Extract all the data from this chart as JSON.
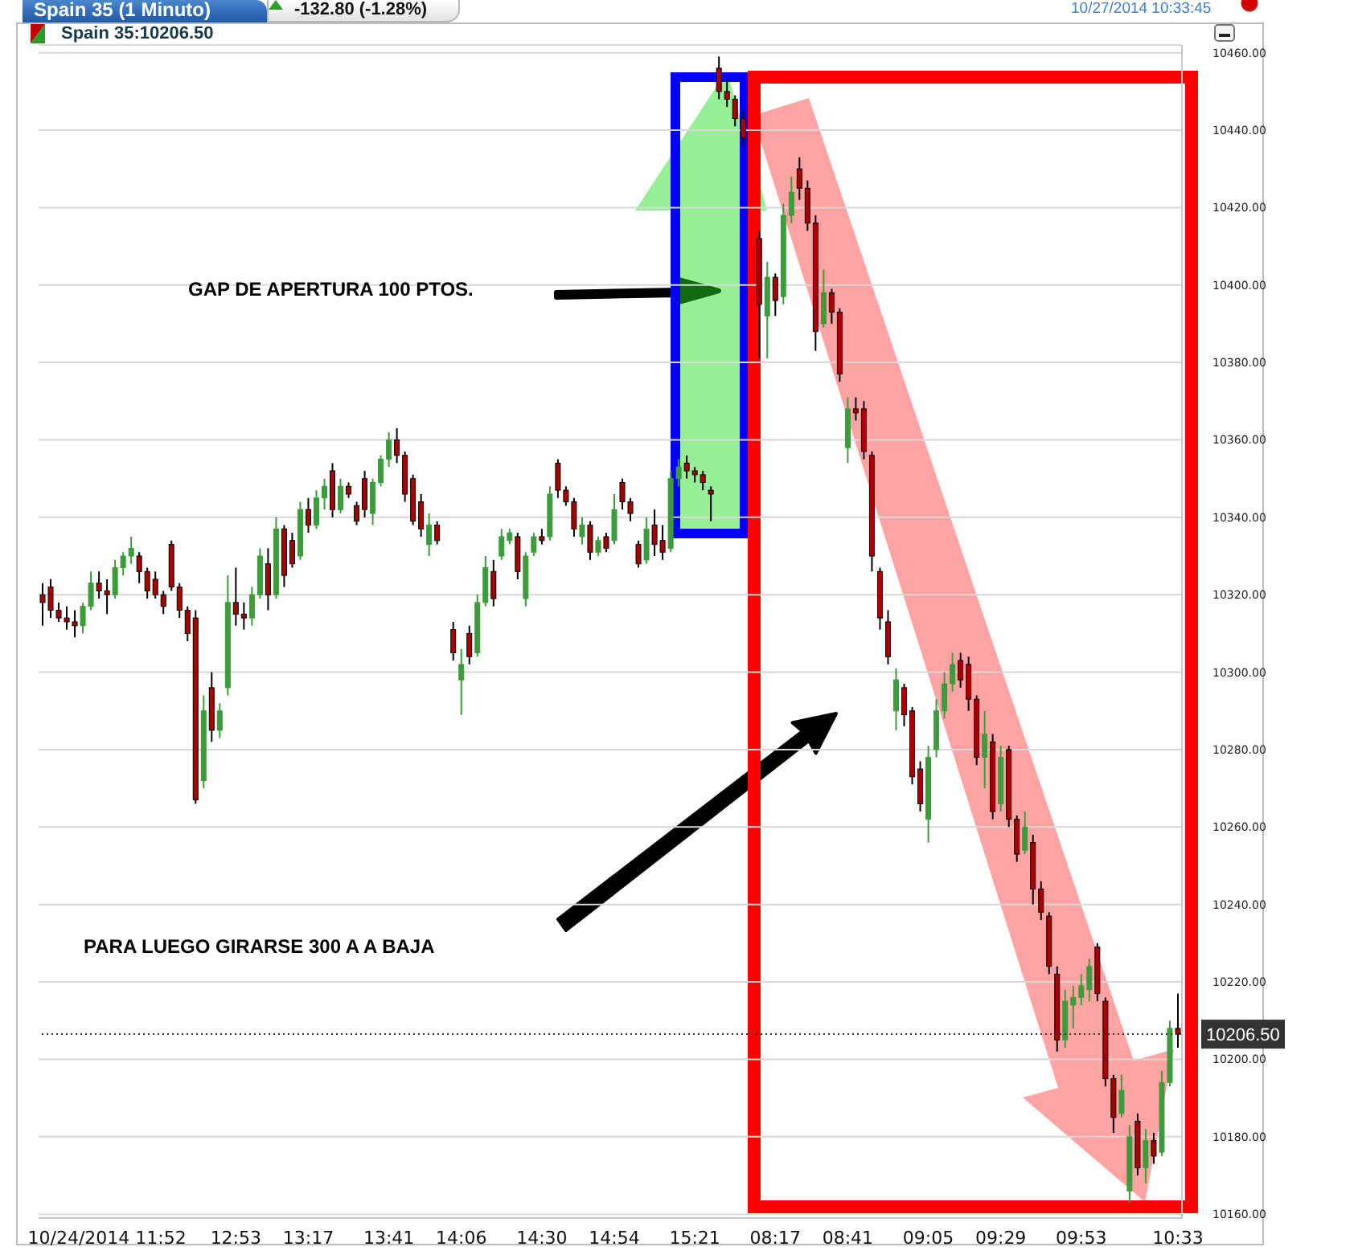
{
  "chart_data": {
    "type": "candlestick",
    "title": "Spain 35 (1 Minuto)",
    "subtitle": "Spain 35:10206.50",
    "annotations": [
      "-132.80 (-1.28%)",
      "10/27/2014 10:33:45",
      "GAP DE APERTURA 100 PTOS.",
      "PARA LUEGO GIRARSE 300 A A BAJA"
    ],
    "categories": [
      null,
      null,
      null,
      null,
      null,
      null,
      null,
      null,
      "10/24/2014 11:52",
      null,
      null,
      null,
      null,
      null,
      null,
      null,
      null,
      null,
      null,
      null,
      null,
      null,
      null,
      null,
      "12:53",
      null,
      null,
      null,
      null,
      null,
      null,
      null,
      null,
      "13:17",
      null,
      null,
      null,
      null,
      null,
      null,
      null,
      null,
      null,
      "13:41",
      null,
      null,
      null,
      null,
      null,
      null,
      null,
      null,
      "14:06",
      null,
      null,
      null,
      null,
      null,
      null,
      null,
      null,
      null,
      "14:30",
      null,
      null,
      null,
      null,
      null,
      null,
      null,
      null,
      "14:54",
      null,
      null,
      null,
      null,
      null,
      null,
      null,
      null,
      null,
      "15:21",
      null,
      null,
      null,
      null,
      null,
      null,
      null,
      null,
      null,
      "08:17",
      null,
      null,
      null,
      null,
      null,
      null,
      null,
      null,
      "08:41",
      null,
      null,
      null,
      null,
      null,
      null,
      null,
      null,
      null,
      "09:05",
      null,
      null,
      null,
      null,
      null,
      null,
      null,
      null,
      "09:29",
      null,
      null,
      null,
      null,
      null,
      null,
      null,
      null,
      null,
      "09:53",
      null,
      null,
      null,
      null,
      null,
      null,
      null,
      null,
      null,
      null,
      null,
      "10:33"
    ],
    "ohlc": [
      [
        10320,
        10323,
        10312,
        10318
      ],
      [
        10322,
        10324,
        10314,
        10316
      ],
      [
        10316,
        10318,
        10313,
        10314
      ],
      [
        10314,
        10317,
        10311,
        10313
      ],
      [
        10313,
        10316,
        10309,
        10312
      ],
      [
        10312,
        10318,
        10310,
        10317
      ],
      [
        10317,
        10326,
        10316,
        10323
      ],
      [
        10323,
        10326,
        10319,
        10321
      ],
      [
        10321,
        10324,
        10315,
        10320
      ],
      [
        10320,
        10329,
        10319,
        10327
      ],
      [
        10327,
        10331,
        10325,
        10330
      ],
      [
        10330,
        10335,
        10328,
        10332
      ],
      [
        10330,
        10331,
        10323,
        10326
      ],
      [
        10326,
        10327,
        10319,
        10321
      ],
      [
        10324,
        10326,
        10319,
        10320
      ],
      [
        10320,
        10321,
        10315,
        10317
      ],
      [
        10333,
        10334,
        10321,
        10322
      ],
      [
        10322,
        10323,
        10314,
        10316
      ],
      [
        10316,
        10317,
        10308,
        10310
      ],
      [
        10314,
        10316,
        10266,
        10267
      ],
      [
        10272,
        10294,
        10270,
        10290
      ],
      [
        10296,
        10300,
        10282,
        10285
      ],
      [
        10285,
        10292,
        10283,
        10290
      ],
      [
        10296,
        10325,
        10294,
        10318
      ],
      [
        10318,
        10327,
        10312,
        10315
      ],
      [
        10315,
        10318,
        10311,
        10314
      ],
      [
        10314,
        10322,
        10312,
        10320
      ],
      [
        10320,
        10332,
        10319,
        10330
      ],
      [
        10328,
        10332,
        10316,
        10320
      ],
      [
        10320,
        10340,
        10319,
        10337
      ],
      [
        10337,
        10338,
        10322,
        10325
      ],
      [
        10334,
        10336,
        10327,
        10328
      ],
      [
        10330,
        10344,
        10329,
        10342
      ],
      [
        10342,
        10345,
        10336,
        10338
      ],
      [
        10338,
        10347,
        10337,
        10345
      ],
      [
        10345,
        10350,
        10342,
        10348
      ],
      [
        10352,
        10354,
        10340,
        10342
      ],
      [
        10342,
        10350,
        10341,
        10348
      ],
      [
        10348,
        10349,
        10345,
        10346
      ],
      [
        10343,
        10344,
        10338,
        10339
      ],
      [
        10350,
        10352,
        10340,
        10342
      ],
      [
        10341,
        10350,
        10338,
        10349
      ],
      [
        10349,
        10356,
        10348,
        10355
      ],
      [
        10355,
        10362,
        10353,
        10360
      ],
      [
        10360,
        10363,
        10354,
        10356
      ],
      [
        10356,
        10357,
        10344,
        10346
      ],
      [
        10350,
        10351,
        10338,
        10339
      ],
      [
        10344,
        10346,
        10335,
        10337
      ],
      [
        10333,
        10341,
        10330,
        10338
      ],
      [
        10338,
        10339,
        10333,
        10334
      ],
      null,
      [
        10311,
        10313,
        10303,
        10305
      ],
      [
        10298,
        10306,
        10289,
        10302
      ],
      [
        10310,
        10312,
        10302,
        10304
      ],
      [
        10305,
        10320,
        10304,
        10318
      ],
      [
        10318,
        10330,
        10317,
        10327
      ],
      [
        10326,
        10329,
        10317,
        10319
      ],
      [
        10330,
        10337,
        10329,
        10335
      ],
      [
        10334,
        10337,
        10333,
        10336
      ],
      [
        10335,
        10336,
        10324,
        10326
      ],
      [
        10319,
        10331,
        10317,
        10330
      ],
      [
        10331,
        10336,
        10330,
        10335
      ],
      [
        10335,
        10337,
        10333,
        10334
      ],
      [
        10335,
        10348,
        10334,
        10346
      ],
      [
        10354,
        10355,
        10345,
        10347
      ],
      [
        10347,
        10348,
        10343,
        10344
      ],
      [
        10344,
        10345,
        10335,
        10337
      ],
      [
        10335,
        10340,
        10333,
        10338
      ],
      [
        10338,
        10339,
        10329,
        10331
      ],
      [
        10331,
        10335,
        10330,
        10334
      ],
      [
        10335,
        10336,
        10331,
        10332
      ],
      [
        10334,
        10346,
        10333,
        10342
      ],
      [
        10349,
        10350,
        10342,
        10344
      ],
      [
        10344,
        10345,
        10339,
        10341
      ],
      [
        10333,
        10334,
        10327,
        10328
      ],
      [
        10329,
        10340,
        10328,
        10337
      ],
      [
        10338,
        10342,
        10330,
        10333
      ],
      [
        10334,
        10338,
        10329,
        10331
      ],
      [
        10332,
        10352,
        10331,
        10350
      ],
      [
        10350,
        10355,
        10348,
        10353
      ],
      [
        10354,
        10356,
        10350,
        10352
      ],
      [
        10352,
        10353,
        10349,
        10351
      ],
      [
        10351,
        10352,
        10347,
        10349
      ],
      [
        10347,
        10348,
        10339,
        10346
      ],
      [
        10456,
        10459,
        10448,
        10450
      ],
      [
        10450,
        10453,
        10446,
        10448
      ],
      [
        10448,
        10449,
        10441,
        10443
      ],
      [
        10443,
        10445,
        10436,
        10438
      ],
      null,
      [
        10412,
        10414,
        10381,
        10395
      ],
      [
        10392,
        10406,
        10381,
        10402
      ],
      [
        10402,
        10403,
        10392,
        10396
      ],
      [
        10397,
        10421,
        10395,
        10418
      ],
      [
        10418,
        10428,
        10416,
        10424
      ],
      [
        10430,
        10433,
        10422,
        10425
      ],
      [
        10425,
        10427,
        10414,
        10416
      ],
      [
        10416,
        10418,
        10383,
        10388
      ],
      [
        10390,
        10404,
        10389,
        10398
      ],
      [
        10398,
        10399,
        10390,
        10393
      ],
      [
        10393,
        10394,
        10375,
        10377
      ],
      [
        10358,
        10371,
        10354,
        10368
      ],
      [
        10368,
        10371,
        10365,
        10367
      ],
      [
        10368,
        10370,
        10355,
        10357
      ],
      [
        10356,
        10357,
        10326,
        10330
      ],
      [
        10326,
        10327,
        10311,
        10314
      ],
      [
        10313,
        10316,
        10302,
        10304
      ],
      [
        10290,
        10301,
        10285,
        10298
      ],
      [
        10296,
        10297,
        10286,
        10289
      ],
      [
        10290,
        10291,
        10271,
        10273
      ],
      [
        10275,
        10277,
        10264,
        10266
      ],
      [
        10262,
        10281,
        10256,
        10278
      ],
      [
        10280,
        10293,
        10278,
        10290
      ],
      [
        10290,
        10300,
        10288,
        10297
      ],
      [
        10297,
        10305,
        10295,
        10302
      ],
      [
        10303,
        10305,
        10296,
        10298
      ],
      [
        10302,
        10304,
        10290,
        10293
      ],
      [
        10293,
        10294,
        10276,
        10278
      ],
      [
        10278,
        10290,
        10270,
        10284
      ],
      [
        10282,
        10284,
        10262,
        10264
      ],
      [
        10266,
        10281,
        10264,
        10278
      ],
      [
        10280,
        10281,
        10260,
        10262
      ],
      [
        10262,
        10263,
        10251,
        10253
      ],
      [
        10254,
        10264,
        10253,
        10260
      ],
      [
        10256,
        10258,
        10240,
        10244
      ],
      [
        10244,
        10246,
        10236,
        10238
      ],
      [
        10237,
        10238,
        10222,
        10224
      ],
      [
        10222,
        10224,
        10202,
        10205
      ],
      [
        10205,
        10218,
        10203,
        10215
      ],
      [
        10214,
        10219,
        10208,
        10216
      ],
      [
        10216,
        10222,
        10214,
        10219
      ],
      [
        10218,
        10226,
        10215,
        10224
      ],
      [
        10229,
        10230,
        10215,
        10217
      ],
      [
        10215,
        10216,
        10193,
        10195
      ],
      [
        10195,
        10196,
        10181,
        10185
      ],
      [
        10186,
        10196,
        10185,
        10192
      ],
      [
        10166,
        10183,
        10163,
        10180
      ],
      [
        10184,
        10186,
        10170,
        10172
      ],
      [
        10172,
        10182,
        10168,
        10179
      ],
      [
        10179,
        10181,
        10173,
        10175
      ],
      [
        10176,
        10197,
        10175,
        10194
      ],
      [
        10194,
        10210,
        10193,
        10208
      ],
      [
        10208,
        10217,
        10203,
        10206.5
      ]
    ],
    "ylim": [
      10159,
      10462
    ],
    "yticks": [
      {
        "value": 10160,
        "label": "10160.00"
      },
      {
        "value": 10180,
        "label": "10180.00"
      },
      {
        "value": 10200,
        "label": "10200.00"
      },
      {
        "value": 10220,
        "label": "10220.00"
      },
      {
        "value": 10240,
        "label": "10240.00"
      },
      {
        "value": 10260,
        "label": "10260.00"
      },
      {
        "value": 10280,
        "label": "10280.00"
      },
      {
        "value": 10300,
        "label": "10300.00"
      },
      {
        "value": 10320,
        "label": "10320.00"
      },
      {
        "value": 10340,
        "label": "10340.00"
      },
      {
        "value": 10360,
        "label": "10360.00"
      },
      {
        "value": 10380,
        "label": "10380.00"
      },
      {
        "value": 10400,
        "label": "10400.00"
      },
      {
        "value": 10420,
        "label": "10420.00"
      },
      {
        "value": 10440,
        "label": "10440.00"
      },
      {
        "value": 10460,
        "label": "10460.00"
      }
    ],
    "grid": "y",
    "ref_lines": [
      {
        "axis": "y",
        "value": 10206.5,
        "label": "10206.50",
        "line_style": "dotted",
        "color": "#333333"
      }
    ]
  }
}
